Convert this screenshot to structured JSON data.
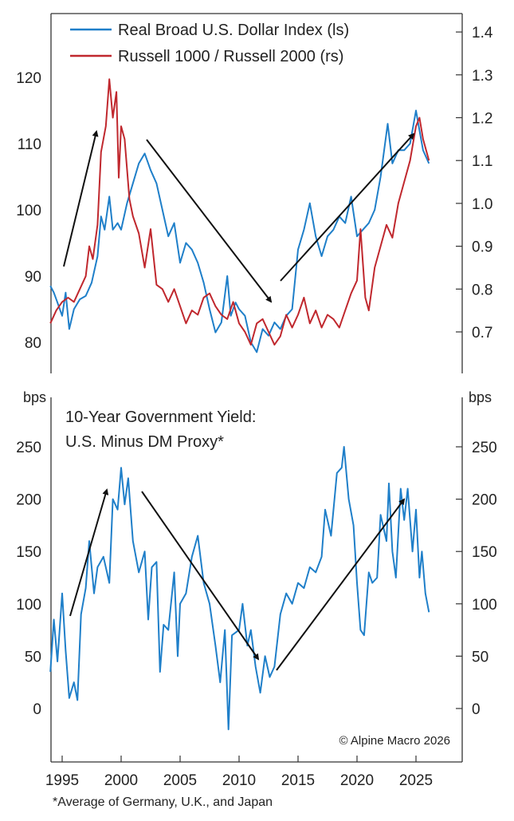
{
  "chart_data": [
    {
      "type": "line",
      "legend_placement": "top-left",
      "grid": false,
      "left_axis": {
        "ylim": [
          75,
          130
        ],
        "ticks": [
          "80",
          "90",
          "100",
          "110",
          "120"
        ]
      },
      "right_axis": {
        "ylim": [
          0.615,
          1.46
        ],
        "ticks": [
          "0.7",
          "0.8",
          "0.9",
          "1.0",
          "1.1",
          "1.2",
          "1.3",
          "1.4"
        ]
      },
      "series": [
        {
          "name": "Real Broad U.S. Dollar Index (ls)",
          "axis": "left",
          "color": "#1f7fc9",
          "points": [
            [
              1994.0,
              88.5
            ],
            [
              1994.3,
              87.5
            ],
            [
              1994.6,
              86
            ],
            [
              1995.0,
              84
            ],
            [
              1995.3,
              87.5
            ],
            [
              1995.6,
              82
            ],
            [
              1996.0,
              85
            ],
            [
              1996.5,
              86.5
            ],
            [
              1997.0,
              87
            ],
            [
              1997.5,
              89
            ],
            [
              1998.0,
              93
            ],
            [
              1998.3,
              99
            ],
            [
              1998.6,
              97
            ],
            [
              1999.0,
              102
            ],
            [
              1999.3,
              97
            ],
            [
              1999.7,
              98
            ],
            [
              2000.0,
              97
            ],
            [
              2000.5,
              101
            ],
            [
              2001.0,
              104
            ],
            [
              2001.5,
              107
            ],
            [
              2002.0,
              108.5
            ],
            [
              2002.5,
              106
            ],
            [
              2003.0,
              104
            ],
            [
              2003.5,
              100
            ],
            [
              2004.0,
              96
            ],
            [
              2004.5,
              98
            ],
            [
              2005.0,
              92
            ],
            [
              2005.5,
              95
            ],
            [
              2006.0,
              94
            ],
            [
              2006.5,
              92
            ],
            [
              2007.0,
              89
            ],
            [
              2007.5,
              85
            ],
            [
              2008.0,
              81.5
            ],
            [
              2008.5,
              83
            ],
            [
              2009.0,
              90
            ],
            [
              2009.3,
              84
            ],
            [
              2009.7,
              86
            ],
            [
              2010.0,
              85
            ],
            [
              2010.5,
              84
            ],
            [
              2011.0,
              80
            ],
            [
              2011.5,
              78.5
            ],
            [
              2012.0,
              82
            ],
            [
              2012.5,
              81
            ],
            [
              2013.0,
              83
            ],
            [
              2013.5,
              82
            ],
            [
              2014.0,
              84
            ],
            [
              2014.5,
              85
            ],
            [
              2015.0,
              94
            ],
            [
              2015.5,
              97
            ],
            [
              2016.0,
              101
            ],
            [
              2016.5,
              96
            ],
            [
              2017.0,
              93
            ],
            [
              2017.5,
              96
            ],
            [
              2018.0,
              97
            ],
            [
              2018.5,
              99
            ],
            [
              2019.0,
              98
            ],
            [
              2019.5,
              102
            ],
            [
              2020.0,
              96
            ],
            [
              2020.5,
              97
            ],
            [
              2021.0,
              98
            ],
            [
              2021.5,
              100
            ],
            [
              2022.0,
              105
            ],
            [
              2022.6,
              113
            ],
            [
              2023.0,
              107
            ],
            [
              2023.5,
              109
            ],
            [
              2024.0,
              109
            ],
            [
              2024.5,
              110
            ],
            [
              2025.0,
              115
            ],
            [
              2025.3,
              112
            ],
            [
              2025.6,
              109
            ],
            [
              2026.1,
              107
            ]
          ]
        },
        {
          "name": "Russell 1000 / Russell 2000 (rs)",
          "axis": "right",
          "color": "#c0282e",
          "points": [
            [
              1994.0,
              0.72
            ],
            [
              1994.5,
              0.75
            ],
            [
              1995.0,
              0.77
            ],
            [
              1995.5,
              0.78
            ],
            [
              1996.0,
              0.77
            ],
            [
              1996.5,
              0.8
            ],
            [
              1997.0,
              0.83
            ],
            [
              1997.3,
              0.9
            ],
            [
              1997.6,
              0.87
            ],
            [
              1998.0,
              0.95
            ],
            [
              1998.3,
              1.12
            ],
            [
              1998.7,
              1.18
            ],
            [
              1999.0,
              1.29
            ],
            [
              1999.3,
              1.2
            ],
            [
              1999.6,
              1.26
            ],
            [
              1999.8,
              1.06
            ],
            [
              2000.0,
              1.18
            ],
            [
              2000.3,
              1.15
            ],
            [
              2000.7,
              1.01
            ],
            [
              2001.0,
              0.97
            ],
            [
              2001.5,
              0.93
            ],
            [
              2002.0,
              0.85
            ],
            [
              2002.5,
              0.94
            ],
            [
              2003.0,
              0.81
            ],
            [
              2003.5,
              0.8
            ],
            [
              2004.0,
              0.77
            ],
            [
              2004.5,
              0.8
            ],
            [
              2005.0,
              0.76
            ],
            [
              2005.5,
              0.72
            ],
            [
              2006.0,
              0.75
            ],
            [
              2006.5,
              0.74
            ],
            [
              2007.0,
              0.78
            ],
            [
              2007.5,
              0.79
            ],
            [
              2008.0,
              0.76
            ],
            [
              2008.5,
              0.74
            ],
            [
              2009.0,
              0.73
            ],
            [
              2009.5,
              0.77
            ],
            [
              2010.0,
              0.72
            ],
            [
              2010.5,
              0.7
            ],
            [
              2011.0,
              0.67
            ],
            [
              2011.5,
              0.72
            ],
            [
              2012.0,
              0.73
            ],
            [
              2012.5,
              0.7
            ],
            [
              2013.0,
              0.67
            ],
            [
              2013.5,
              0.69
            ],
            [
              2014.0,
              0.74
            ],
            [
              2014.5,
              0.71
            ],
            [
              2015.0,
              0.74
            ],
            [
              2015.5,
              0.78
            ],
            [
              2016.0,
              0.72
            ],
            [
              2016.5,
              0.75
            ],
            [
              2017.0,
              0.71
            ],
            [
              2017.5,
              0.74
            ],
            [
              2018.0,
              0.73
            ],
            [
              2018.5,
              0.71
            ],
            [
              2019.0,
              0.75
            ],
            [
              2019.5,
              0.79
            ],
            [
              2020.0,
              0.82
            ],
            [
              2020.3,
              0.94
            ],
            [
              2020.7,
              0.78
            ],
            [
              2021.0,
              0.75
            ],
            [
              2021.5,
              0.85
            ],
            [
              2022.0,
              0.9
            ],
            [
              2022.5,
              0.95
            ],
            [
              2023.0,
              0.92
            ],
            [
              2023.5,
              1.0
            ],
            [
              2024.0,
              1.05
            ],
            [
              2024.5,
              1.1
            ],
            [
              2025.0,
              1.18
            ],
            [
              2025.3,
              1.2
            ],
            [
              2025.6,
              1.15
            ],
            [
              2026.1,
              1.1
            ]
          ]
        }
      ]
    },
    {
      "type": "line",
      "title": "10-Year Government Yield:",
      "subtitle": "U.S. Minus DM Proxy*",
      "grid": false,
      "ylabel_left": "bps",
      "ylabel_right": "bps",
      "ylim": [
        -50,
        290
      ],
      "yticks": [
        "0",
        "50",
        "100",
        "150",
        "200",
        "250"
      ],
      "xlim": [
        1994,
        2029
      ],
      "xticks": [
        "1995",
        "2000",
        "2005",
        "2010",
        "2015",
        "2020",
        "2025"
      ],
      "series": [
        {
          "color": "#1f7fc9",
          "points": [
            [
              1994.0,
              35
            ],
            [
              1994.3,
              85
            ],
            [
              1994.6,
              45
            ],
            [
              1995.0,
              110
            ],
            [
              1995.3,
              55
            ],
            [
              1995.6,
              10
            ],
            [
              1996.0,
              25
            ],
            [
              1996.3,
              8
            ],
            [
              1996.6,
              90
            ],
            [
              1997.0,
              115
            ],
            [
              1997.3,
              160
            ],
            [
              1997.7,
              110
            ],
            [
              1998.0,
              135
            ],
            [
              1998.5,
              145
            ],
            [
              1999.0,
              120
            ],
            [
              1999.3,
              200
            ],
            [
              1999.7,
              190
            ],
            [
              2000.0,
              230
            ],
            [
              2000.3,
              195
            ],
            [
              2000.6,
              220
            ],
            [
              2001.0,
              160
            ],
            [
              2001.5,
              130
            ],
            [
              2002.0,
              150
            ],
            [
              2002.3,
              85
            ],
            [
              2002.6,
              135
            ],
            [
              2003.0,
              140
            ],
            [
              2003.3,
              35
            ],
            [
              2003.6,
              80
            ],
            [
              2004.0,
              75
            ],
            [
              2004.5,
              130
            ],
            [
              2004.8,
              50
            ],
            [
              2005.0,
              100
            ],
            [
              2005.5,
              110
            ],
            [
              2006.0,
              145
            ],
            [
              2006.5,
              165
            ],
            [
              2007.0,
              120
            ],
            [
              2007.5,
              100
            ],
            [
              2008.0,
              60
            ],
            [
              2008.4,
              25
            ],
            [
              2008.8,
              75
            ],
            [
              2009.1,
              -20
            ],
            [
              2009.4,
              70
            ],
            [
              2010.0,
              75
            ],
            [
              2010.3,
              100
            ],
            [
              2010.7,
              60
            ],
            [
              2011.0,
              75
            ],
            [
              2011.4,
              40
            ],
            [
              2011.8,
              15
            ],
            [
              2012.2,
              50
            ],
            [
              2012.6,
              30
            ],
            [
              2013.0,
              40
            ],
            [
              2013.5,
              90
            ],
            [
              2014.0,
              110
            ],
            [
              2014.5,
              100
            ],
            [
              2015.0,
              120
            ],
            [
              2015.5,
              115
            ],
            [
              2016.0,
              135
            ],
            [
              2016.5,
              130
            ],
            [
              2017.0,
              145
            ],
            [
              2017.3,
              190
            ],
            [
              2017.8,
              165
            ],
            [
              2018.3,
              225
            ],
            [
              2018.7,
              230
            ],
            [
              2018.9,
              250
            ],
            [
              2019.3,
              200
            ],
            [
              2019.7,
              175
            ],
            [
              2020.0,
              120
            ],
            [
              2020.3,
              75
            ],
            [
              2020.6,
              70
            ],
            [
              2021.0,
              130
            ],
            [
              2021.3,
              120
            ],
            [
              2021.7,
              125
            ],
            [
              2022.0,
              185
            ],
            [
              2022.5,
              160
            ],
            [
              2022.7,
              215
            ],
            [
              2023.0,
              150
            ],
            [
              2023.3,
              125
            ],
            [
              2023.7,
              210
            ],
            [
              2024.0,
              180
            ],
            [
              2024.3,
              210
            ],
            [
              2024.7,
              150
            ],
            [
              2025.0,
              190
            ],
            [
              2025.3,
              125
            ],
            [
              2025.5,
              150
            ],
            [
              2025.8,
              110
            ],
            [
              2026.1,
              92
            ]
          ]
        }
      ]
    }
  ],
  "copyright": "© Alpine Macro 2026",
  "footnote": "*Average of Germany, U.K., and Japan"
}
